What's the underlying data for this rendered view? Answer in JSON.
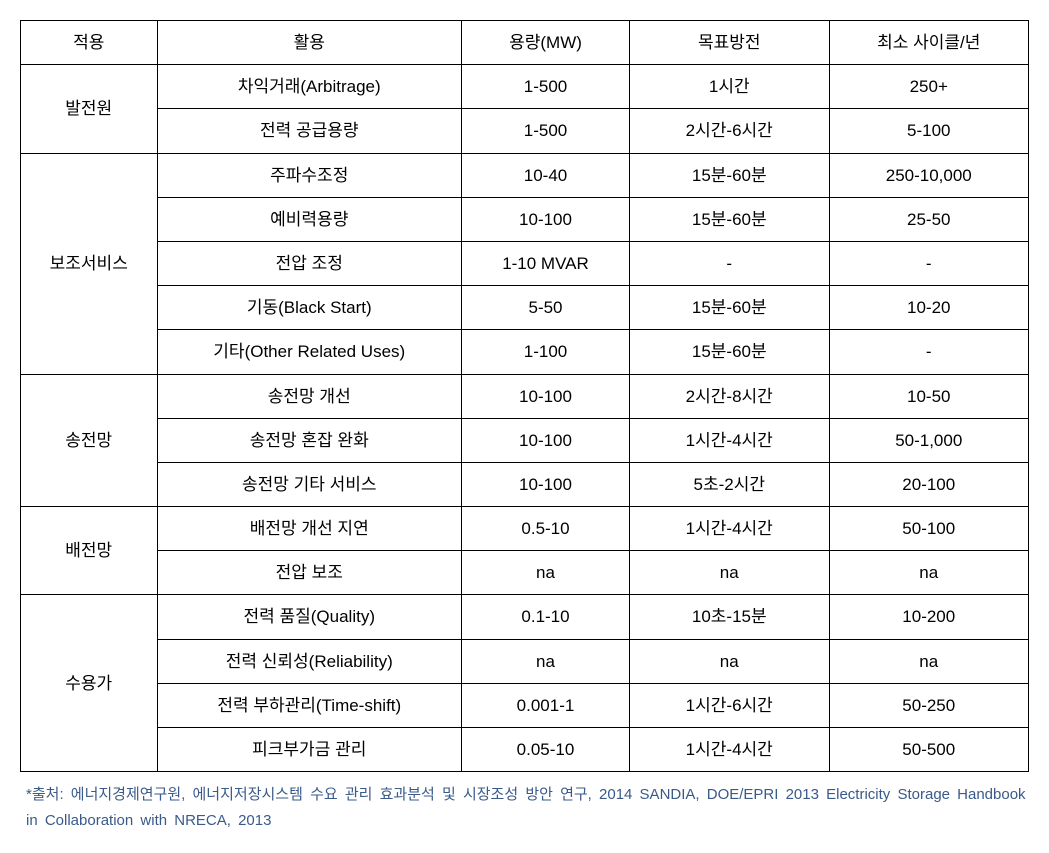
{
  "headers": {
    "application": "적용",
    "use": "활용",
    "capacity": "용량(MW)",
    "target": "목표방전",
    "cycle": "최소 사이클/년"
  },
  "groups": [
    {
      "name": "발전원",
      "rows": [
        {
          "use": "차익거래(Arbitrage)",
          "capacity": "1-500",
          "target": "1시간",
          "cycle": "250+"
        },
        {
          "use": "전력 공급용량",
          "capacity": "1-500",
          "target": "2시간-6시간",
          "cycle": "5-100"
        }
      ]
    },
    {
      "name": "보조서비스",
      "rows": [
        {
          "use": "주파수조정",
          "capacity": "10-40",
          "target": "15분-60분",
          "cycle": "250-10,000"
        },
        {
          "use": "예비력용량",
          "capacity": "10-100",
          "target": "15분-60분",
          "cycle": "25-50"
        },
        {
          "use": "전압 조정",
          "capacity": "1-10  MVAR",
          "target": "-",
          "cycle": "-"
        },
        {
          "use": "기동(Black Start)",
          "capacity": "5-50",
          "target": "15분-60분",
          "cycle": "10-20"
        },
        {
          "use": "기타(Other Related Uses)",
          "capacity": "1-100",
          "target": "15분-60분",
          "cycle": "-"
        }
      ]
    },
    {
      "name": "송전망",
      "rows": [
        {
          "use": "송전망 개선",
          "capacity": "10-100",
          "target": "2시간-8시간",
          "cycle": "10-50"
        },
        {
          "use": "송전망 혼잡 완화",
          "capacity": "10-100",
          "target": "1시간-4시간",
          "cycle": "50-1,000"
        },
        {
          "use": "송전망 기타 서비스",
          "capacity": "10-100",
          "target": "5초-2시간",
          "cycle": "20-100"
        }
      ]
    },
    {
      "name": "배전망",
      "rows": [
        {
          "use": "배전망 개선 지연",
          "capacity": "0.5-10",
          "target": "1시간-4시간",
          "cycle": "50-100"
        },
        {
          "use": "전압 보조",
          "capacity": "na",
          "target": "na",
          "cycle": "na"
        }
      ]
    },
    {
      "name": "수용가",
      "rows": [
        {
          "use": "전력 품질(Quality)",
          "capacity": "0.1-10",
          "target": "10초-15분",
          "cycle": "10-200"
        },
        {
          "use": "전력 신뢰성(Reliability)",
          "capacity": "na",
          "target": "na",
          "cycle": "na"
        },
        {
          "use": "전력 부하관리(Time-shift)",
          "capacity": "0.001-1",
          "target": "1시간-6시간",
          "cycle": "50-250"
        },
        {
          "use": "피크부가금 관리",
          "capacity": "0.05-10",
          "target": "1시간-4시간",
          "cycle": "50-500"
        }
      ]
    }
  ],
  "footnote": "*출처: 에너지경제연구원, 에너지저장시스템 수요 관리 효과분석 및 시장조성 방안 연구, 2014 SANDIA, DOE/EPRI 2013 Electricity Storage Handbook in Collaboration with NRECA, 2013"
}
